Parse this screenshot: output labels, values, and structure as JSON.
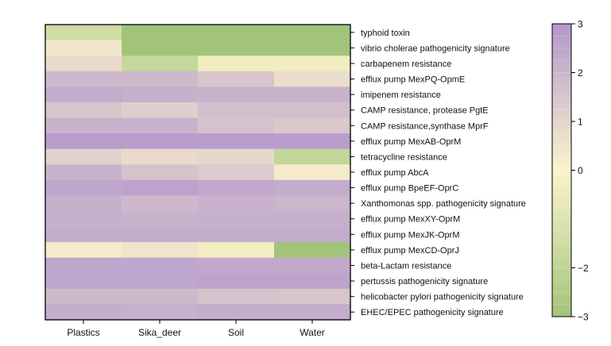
{
  "chart_data": {
    "type": "heatmap",
    "columns": [
      "Plastics",
      "Sika_deer",
      "Soil",
      "Water"
    ],
    "rows": [
      "typhoid toxin",
      "vibrio cholerae pathogenicity signature",
      "carbapenem resistance",
      "efflux pump MexPQ-OpmE",
      "imipenem resistance",
      "CAMP resistance, protease PgtE",
      "CAMP resistance,synthase MprF",
      "efflux pump MexAB-OprM",
      "tetracycline resistance",
      "efflux pump AbcA",
      "efflux pump BpeEF-OprC",
      "Xanthomonas spp. pathogenicity signature",
      "efflux pump MexXY-OprM",
      "efflux pump MexJK-OprM",
      "efflux pump MexCD-OprJ",
      "beta-Lactam resistance",
      "pertussis pathogenicity signature",
      "helicobacter pylori pathogenicity signature",
      "EHEC/EPEC pathogenicity signature"
    ],
    "values": [
      [
        -1.5,
        -3.0,
        -3.0,
        -3.0
      ],
      [
        0.4,
        -3.0,
        -3.0,
        -3.0
      ],
      [
        0.8,
        -1.8,
        -0.4,
        -0.4
      ],
      [
        1.9,
        1.9,
        1.5,
        0.7
      ],
      [
        2.3,
        2.2,
        2.1,
        2.1
      ],
      [
        1.5,
        1.2,
        1.7,
        1.7
      ],
      [
        2.1,
        2.1,
        1.6,
        1.4
      ],
      [
        2.8,
        2.8,
        2.8,
        2.8
      ],
      [
        1.1,
        0.8,
        0.9,
        -1.9
      ],
      [
        2.1,
        1.6,
        1.3,
        0.3
      ],
      [
        2.5,
        2.6,
        2.4,
        2.3
      ],
      [
        2.2,
        1.9,
        2.1,
        2.0
      ],
      [
        2.2,
        2.1,
        2.2,
        2.2
      ],
      [
        2.3,
        2.3,
        2.3,
        2.3
      ],
      [
        0.3,
        0.5,
        -0.3,
        -3.0
      ],
      [
        2.5,
        2.5,
        2.4,
        2.4
      ],
      [
        2.5,
        2.5,
        2.6,
        2.6
      ],
      [
        1.9,
        1.9,
        1.6,
        1.5
      ],
      [
        2.3,
        2.2,
        2.3,
        2.3
      ]
    ],
    "colorbar": {
      "range": [
        -3,
        3
      ],
      "ticks": [
        3,
        2,
        1,
        0,
        -2,
        -3
      ],
      "tick_labels": [
        "3",
        "2",
        "1",
        "0",
        "−2",
        "−3"
      ],
      "colors": {
        "low": "#a2c47a",
        "mid": "#fcf3cc",
        "high": "#b397cc"
      }
    }
  }
}
